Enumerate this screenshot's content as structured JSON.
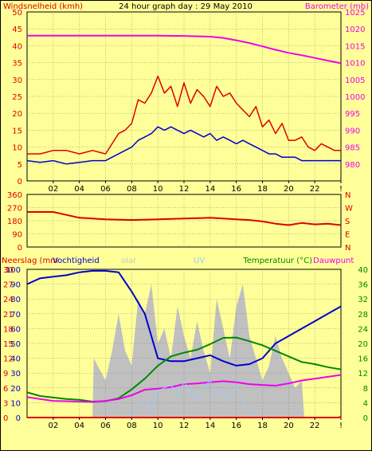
{
  "chart_data": [
    {
      "type": "line",
      "title": "24 hour graph day : 29 May 2010",
      "ylabel": "Windsnelheid (kmh)",
      "y2label": "Barometer (mb)",
      "ylim": [
        0,
        50
      ],
      "y2lim": [
        975,
        1025
      ],
      "yticks": [
        "0",
        "5",
        "10",
        "15",
        "20",
        "25",
        "30",
        "35",
        "40",
        "45",
        "50"
      ],
      "y2ticks": [
        "980",
        "985",
        "990",
        "995",
        "1000",
        "1005",
        "1010",
        "1015",
        "1020",
        "1025"
      ],
      "xlim": [
        0,
        24
      ],
      "xticks": [
        "02",
        "04",
        "06",
        "08",
        "10",
        "12",
        "14",
        "16",
        "18",
        "20",
        "22",
        "!"
      ],
      "colors": {
        "gust": "#dd0000",
        "wind": "#0000cc",
        "baro": "#ee00ee"
      },
      "series": [
        {
          "key": "baro",
          "axis": "right",
          "x": [
            0,
            2,
            4,
            6,
            8,
            10,
            12,
            14,
            15,
            16,
            17,
            18,
            19,
            20,
            21,
            22,
            23,
            24
          ],
          "values": [
            1018,
            1018,
            1018,
            1018,
            1018,
            1018,
            1017.9,
            1017.7,
            1017.3,
            1016.6,
            1015.8,
            1014.8,
            1013.8,
            1012.9,
            1012.2,
            1011.4,
            1010.6,
            1009.8
          ]
        },
        {
          "key": "gust",
          "axis": "left",
          "x": [
            0,
            1,
            2,
            3,
            4,
            5,
            6,
            6.5,
            7,
            7.5,
            8,
            8.5,
            9,
            9.5,
            10,
            10.5,
            11,
            11.5,
            12,
            12.5,
            13,
            13.5,
            14,
            14.5,
            15,
            15.5,
            16,
            16.5,
            17,
            17.5,
            18,
            18.5,
            19,
            19.5,
            20,
            20.5,
            21,
            21.5,
            22,
            22.5,
            23,
            23.5,
            24
          ],
          "values": [
            8,
            8,
            9,
            9,
            8,
            9,
            8,
            11,
            14,
            15,
            17,
            24,
            23,
            26,
            31,
            26,
            28,
            22,
            29,
            23,
            27,
            25,
            22,
            28,
            25,
            26,
            23,
            21,
            19,
            22,
            16,
            18,
            14,
            17,
            12,
            12,
            13,
            10,
            9,
            11,
            10,
            9,
            9
          ]
        },
        {
          "key": "wind",
          "axis": "left",
          "x": [
            0,
            1,
            2,
            3,
            4,
            5,
            6,
            6.5,
            7,
            7.5,
            8,
            8.5,
            9,
            9.5,
            10,
            10.5,
            11,
            11.5,
            12,
            12.5,
            13,
            13.5,
            14,
            14.5,
            15,
            15.5,
            16,
            16.5,
            17,
            17.5,
            18,
            18.5,
            19,
            19.5,
            20,
            20.5,
            21,
            21.5,
            22,
            22.5,
            23,
            23.5,
            24
          ],
          "values": [
            6,
            5.5,
            6,
            5,
            5.5,
            6,
            6,
            7,
            8,
            9,
            10,
            12,
            13,
            14,
            16,
            15,
            16,
            15,
            14,
            15,
            14,
            13,
            14,
            12,
            13,
            12,
            11,
            12,
            11,
            10,
            9,
            8,
            8,
            7,
            7,
            7,
            6,
            6,
            6,
            6,
            6,
            6,
            6
          ]
        }
      ]
    },
    {
      "type": "line",
      "ylim": [
        0,
        360
      ],
      "yticks": [
        "0",
        "90",
        "180",
        "270",
        "360"
      ],
      "y2ticks": [
        "N",
        "E",
        "S",
        "W",
        "N"
      ],
      "xlim": [
        0,
        24
      ],
      "colors": {
        "dir": "#dd0000"
      },
      "series": [
        {
          "key": "dir",
          "x": [
            0,
            1,
            2,
            3,
            4,
            5,
            6,
            8,
            10,
            12,
            14,
            16,
            17,
            18,
            19,
            20,
            21,
            22,
            23,
            24
          ],
          "values": [
            240,
            240,
            240,
            220,
            200,
            195,
            190,
            185,
            190,
            195,
            200,
            190,
            185,
            175,
            160,
            150,
            165,
            155,
            160,
            150
          ]
        }
      ]
    },
    {
      "type": "line",
      "ylabel_parts": [
        "Neerslag (mm",
        "Vochtigheid",
        "olar",
        "UV"
      ],
      "y2label_parts": [
        "Temperatuur (°C)",
        "Dauwpunt"
      ],
      "ylim": [
        0,
        100
      ],
      "yticks_hum": [
        "0",
        "10",
        "20",
        "30",
        "40",
        "50",
        "60",
        "70",
        "80",
        "90",
        "100"
      ],
      "yticks_rain": [
        "0",
        "3",
        "6",
        "9",
        "12",
        "15",
        "18",
        "21",
        "24",
        "27",
        "30"
      ],
      "y2ticks": [
        "0",
        "4",
        "8",
        "12",
        "16",
        "20",
        "24",
        "28",
        "32",
        "36",
        "40"
      ],
      "y2lim": [
        0,
        40
      ],
      "xlim": [
        0,
        24
      ],
      "xticks": [
        "02",
        "04",
        "06",
        "08",
        "10",
        "12",
        "14",
        "16",
        "18",
        "20",
        "22",
        "!"
      ],
      "colors": {
        "solar": "#c0c0c0",
        "hum": "#0000cc",
        "temp": "#008800",
        "dew": "#ee00ee",
        "uv": "#99ccff",
        "rain": "#dd0000"
      },
      "series": [
        {
          "key": "solar",
          "axis": "left",
          "x": [
            0,
            5,
            5.1,
            6,
            6.5,
            7,
            7.5,
            8,
            8.5,
            9,
            9.5,
            10,
            10.5,
            11,
            11.5,
            12,
            12.5,
            13,
            13.5,
            14,
            14.5,
            15,
            15.5,
            16,
            16.5,
            17,
            17.5,
            18,
            18.5,
            19,
            19.5,
            20,
            20.5,
            21,
            21.2,
            24
          ],
          "values": [
            0,
            0,
            40,
            25,
            45,
            70,
            45,
            35,
            80,
            70,
            90,
            50,
            60,
            40,
            75,
            55,
            40,
            65,
            45,
            30,
            80,
            60,
            40,
            75,
            90,
            55,
            40,
            25,
            35,
            55,
            40,
            30,
            20,
            25,
            0,
            0
          ]
        },
        {
          "key": "hum",
          "axis": "left",
          "x": [
            0,
            1,
            2,
            3,
            4,
            5,
            6,
            7,
            8,
            9,
            10,
            11,
            12,
            13,
            14,
            15,
            16,
            17,
            18,
            19,
            20,
            21,
            22,
            23,
            24
          ],
          "values": [
            90,
            94,
            95,
            96,
            98,
            99,
            99,
            98,
            85,
            70,
            40,
            38,
            38,
            40,
            42,
            38,
            35,
            36,
            40,
            50,
            55,
            60,
            65,
            70,
            75
          ]
        },
        {
          "key": "temp",
          "axis": "right",
          "x": [
            0,
            1,
            2,
            3,
            4,
            5,
            6,
            7,
            8,
            9,
            10,
            11,
            12,
            13,
            14,
            15,
            16,
            17,
            18,
            19,
            20,
            21,
            22,
            23,
            24
          ],
          "values": [
            6.8,
            5.8,
            5.4,
            5.0,
            4.8,
            4.3,
            4.4,
            5.2,
            7.6,
            10.5,
            14,
            16.5,
            17.5,
            18.3,
            19.8,
            21.5,
            21.6,
            20.6,
            19.5,
            18,
            16.5,
            15,
            14.4,
            13.6,
            13.0
          ]
        },
        {
          "key": "dew",
          "axis": "right",
          "x": [
            0,
            1,
            2,
            3,
            4,
            5,
            6,
            7,
            8,
            9,
            10,
            11,
            12,
            13,
            14,
            15,
            16,
            17,
            18,
            19,
            20,
            21,
            22,
            23,
            24
          ],
          "values": [
            5.5,
            5,
            4.5,
            4.4,
            4.3,
            4.2,
            4.5,
            5,
            6,
            7.5,
            7.8,
            8.2,
            9,
            9.2,
            9.5,
            9.8,
            9.5,
            9.0,
            8.8,
            8.6,
            9.2,
            10,
            10.5,
            11,
            11.5
          ]
        },
        {
          "key": "uv",
          "axis": "left",
          "x": [
            0,
            8,
            8.2,
            9,
            9.5,
            10,
            10.5,
            11,
            11.5,
            12,
            12.5,
            13,
            13.5,
            14,
            14.5,
            15,
            15.5,
            16,
            16.5,
            17,
            17.3,
            24
          ],
          "values": [
            0,
            0,
            8,
            12,
            5,
            18,
            20,
            22,
            15,
            24,
            18,
            12,
            20,
            25,
            14,
            18,
            12,
            22,
            10,
            5,
            0,
            0
          ]
        },
        {
          "key": "rain",
          "axis": "left",
          "x": [
            0,
            23.8,
            24
          ],
          "values": [
            0,
            0,
            0.5
          ]
        }
      ]
    }
  ]
}
